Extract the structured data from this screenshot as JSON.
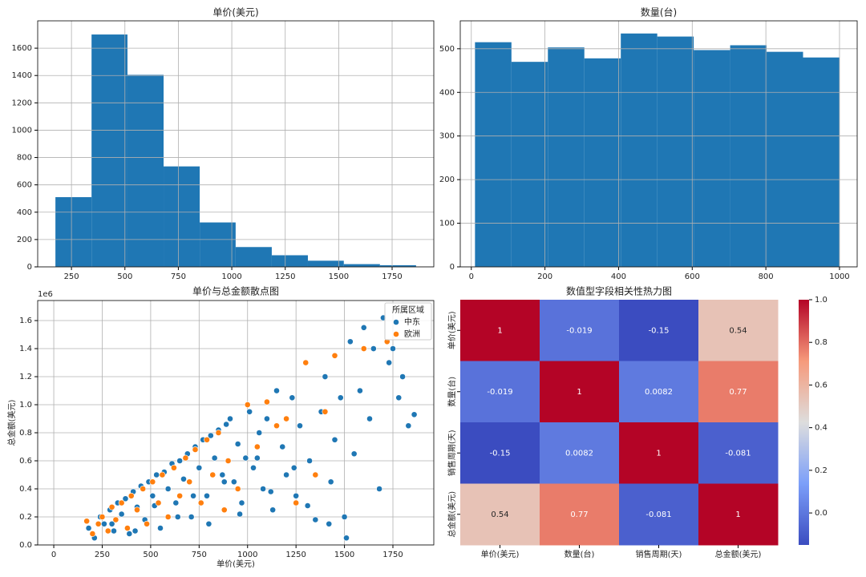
{
  "chart_data": [
    {
      "type": "histogram",
      "title": "单价(美元)",
      "color": "#1f77b4",
      "grid": true,
      "bins": [
        175,
        344,
        512,
        681,
        850,
        1018,
        1187,
        1356,
        1524,
        1693,
        1862
      ],
      "values": [
        510,
        1700,
        1405,
        735,
        325,
        145,
        85,
        45,
        20,
        12
      ],
      "xlim": [
        92,
        1945
      ],
      "xticks": [
        250,
        500,
        750,
        1000,
        1250,
        1500,
        1750
      ],
      "ylim": [
        0,
        1800
      ],
      "yticks": [
        0,
        200,
        400,
        600,
        800,
        1000,
        1200,
        1400,
        1600
      ]
    },
    {
      "type": "histogram",
      "title": "数量(台)",
      "color": "#1f77b4",
      "grid": true,
      "bins": [
        10,
        109,
        208,
        307,
        406,
        505,
        604,
        703,
        802,
        901,
        1000
      ],
      "values": [
        515,
        470,
        503,
        478,
        535,
        528,
        497,
        508,
        493,
        480
      ],
      "xlim": [
        -30,
        1048
      ],
      "xticks": [
        0,
        200,
        400,
        600,
        800,
        1000
      ],
      "ylim": [
        0,
        564
      ],
      "yticks": [
        0,
        100,
        200,
        300,
        400,
        500
      ]
    },
    {
      "type": "scatter",
      "title": "单价与总金额散点图",
      "x_label": "单价(美元)",
      "y_label": "总金额(美元)",
      "y_offset_label": "1e6",
      "grid": true,
      "legend_title": "所属区域",
      "legend_position": "upper right",
      "xlim": [
        -83,
        1961
      ],
      "xticks": [
        0,
        250,
        500,
        750,
        1000,
        1250,
        1500,
        1750
      ],
      "ylim": [
        0,
        1.743
      ],
      "yticks": [
        {
          "value": 0,
          "label": "0.0"
        },
        0.2,
        0.4,
        0.6,
        0.8,
        {
          "value": 1,
          "label": "1.0"
        },
        1.2,
        1.4,
        1.6
      ],
      "series": [
        {
          "name": "中东",
          "color": "#1f77b4",
          "x": [
            180,
            210,
            240,
            260,
            290,
            310,
            330,
            350,
            370,
            390,
            410,
            430,
            450,
            470,
            490,
            510,
            530,
            550,
            570,
            590,
            610,
            630,
            650,
            670,
            690,
            710,
            730,
            750,
            770,
            790,
            810,
            830,
            850,
            870,
            890,
            910,
            930,
            950,
            970,
            990,
            1010,
            1030,
            1060,
            1080,
            1100,
            1130,
            1150,
            1180,
            1200,
            1230,
            1250,
            1270,
            1300,
            1320,
            1350,
            1380,
            1400,
            1430,
            1450,
            1480,
            1500,
            1530,
            1550,
            1580,
            1600,
            1630,
            1650,
            1680,
            1700,
            1730,
            1750,
            1780,
            1800,
            1830,
            1860,
            300,
            420,
            520,
            640,
            720,
            800,
            880,
            960,
            1050,
            1120,
            1240,
            1310,
            1420,
            1510
          ],
          "values": [
            0.12,
            0.05,
            0.2,
            0.15,
            0.25,
            0.1,
            0.3,
            0.22,
            0.33,
            0.08,
            0.38,
            0.27,
            0.42,
            0.18,
            0.45,
            0.35,
            0.5,
            0.12,
            0.52,
            0.4,
            0.58,
            0.3,
            0.6,
            0.47,
            0.65,
            0.2,
            0.7,
            0.55,
            0.75,
            0.35,
            0.78,
            0.62,
            0.82,
            0.5,
            0.86,
            0.9,
            0.45,
            0.72,
            0.3,
            0.62,
            0.95,
            0.55,
            0.8,
            0.4,
            0.9,
            0.25,
            1.1,
            0.7,
            0.5,
            1.05,
            0.35,
            0.85,
            1.3,
            0.6,
            0.18,
            0.95,
            1.2,
            0.45,
            0.75,
            1.05,
            0.2,
            1.45,
            0.65,
            1.1,
            1.55,
            0.9,
            1.4,
            0.4,
            1.62,
            1.3,
            1.4,
            1.05,
            1.2,
            0.85,
            0.93,
            0.15,
            0.1,
            0.28,
            0.2,
            0.35,
            0.15,
            0.45,
            0.22,
            0.62,
            0.38,
            0.55,
            0.28,
            0.15,
            0.05
          ]
        },
        {
          "name": "欧洲",
          "color": "#ff7f0e",
          "x": [
            170,
            200,
            230,
            250,
            280,
            300,
            320,
            350,
            380,
            400,
            430,
            460,
            480,
            510,
            540,
            560,
            590,
            620,
            650,
            680,
            700,
            730,
            760,
            790,
            820,
            850,
            880,
            900,
            950,
            1000,
            1050,
            1100,
            1150,
            1200,
            1250,
            1300,
            1350,
            1400,
            1450,
            1600,
            1720
          ],
          "values": [
            0.17,
            0.08,
            0.15,
            0.2,
            0.1,
            0.27,
            0.18,
            0.3,
            0.12,
            0.35,
            0.25,
            0.4,
            0.15,
            0.45,
            0.3,
            0.5,
            0.2,
            0.55,
            0.35,
            0.62,
            0.45,
            0.68,
            0.3,
            0.75,
            0.5,
            0.8,
            0.25,
            0.6,
            0.4,
            1.0,
            0.7,
            1.02,
            0.85,
            0.9,
            0.3,
            1.3,
            0.5,
            0.95,
            1.35,
            1.4,
            1.45
          ]
        }
      ]
    },
    {
      "type": "heatmap",
      "title": "数值型字段相关性热力图",
      "cmap": "coolwarm",
      "x_labels": [
        "单价(美元)",
        "数量(台)",
        "销售周期(天)",
        "总金额(美元)"
      ],
      "y_labels": [
        "单价(美元)",
        "数量(台)",
        "销售周期(天)",
        "总金额(美元)"
      ],
      "matrix": [
        [
          1,
          -0.019,
          -0.15,
          0.54
        ],
        [
          -0.019,
          1,
          0.0082,
          0.77
        ],
        [
          -0.15,
          0.0082,
          1,
          -0.081
        ],
        [
          0.54,
          0.77,
          -0.081,
          1
        ]
      ],
      "colorbar_lim": [
        -0.15,
        1
      ],
      "colorbar_ticks": [
        {
          "value": 0,
          "label": "0.0"
        },
        0.2,
        0.4,
        0.6,
        0.8,
        {
          "value": 1,
          "label": "1.0"
        }
      ]
    }
  ]
}
